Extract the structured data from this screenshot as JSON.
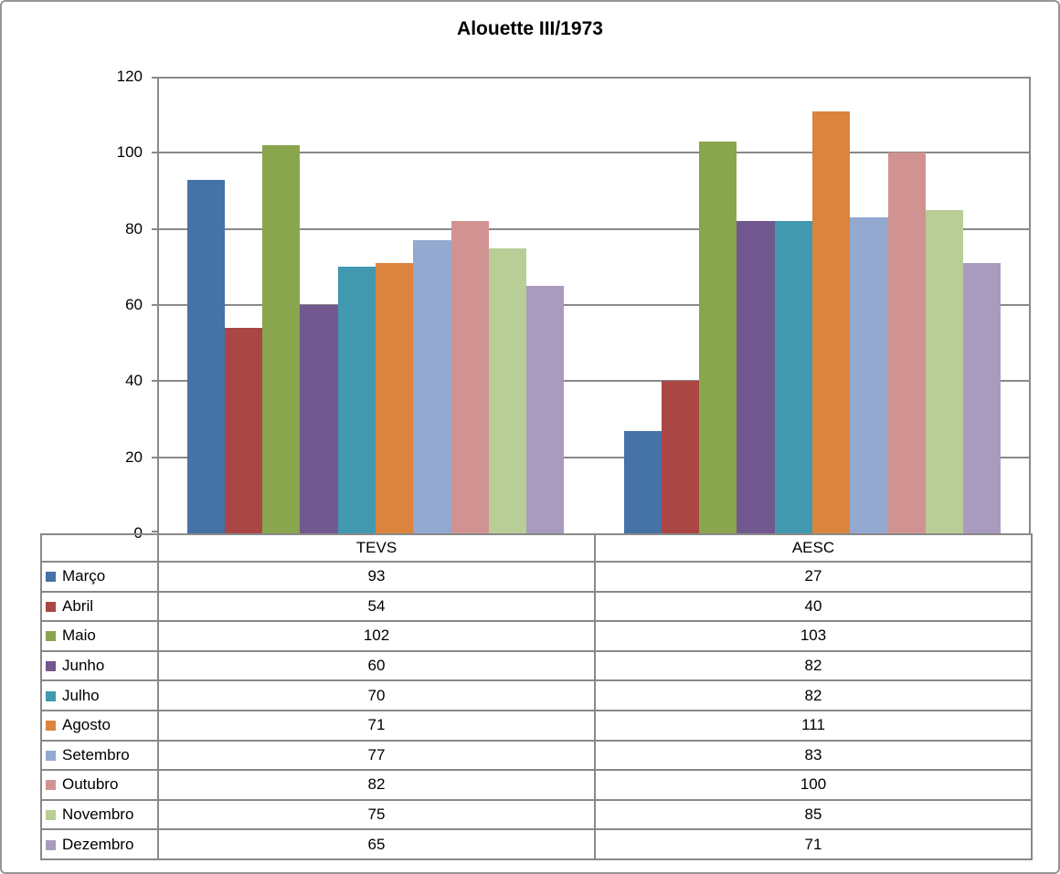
{
  "chart_data": {
    "type": "bar",
    "title": "Alouette III/1973",
    "categories": [
      "TEVS",
      "AESC"
    ],
    "series": [
      {
        "name": "Março",
        "color": "#4572A7",
        "values": [
          93,
          27
        ]
      },
      {
        "name": "Abril",
        "color": "#AA4643",
        "values": [
          54,
          40
        ]
      },
      {
        "name": "Maio",
        "color": "#89A54E",
        "values": [
          102,
          103
        ]
      },
      {
        "name": "Junho",
        "color": "#71588F",
        "values": [
          60,
          82
        ]
      },
      {
        "name": "Julho",
        "color": "#4198AF",
        "values": [
          70,
          82
        ]
      },
      {
        "name": "Agosto",
        "color": "#DB843D",
        "values": [
          71,
          111
        ]
      },
      {
        "name": "Setembro",
        "color": "#93A9CF",
        "values": [
          77,
          83
        ]
      },
      {
        "name": "Outubro",
        "color": "#D19392",
        "values": [
          82,
          100
        ]
      },
      {
        "name": "Novembro",
        "color": "#B9CD96",
        "values": [
          75,
          85
        ]
      },
      {
        "name": "Dezembro",
        "color": "#A99BBD",
        "values": [
          65,
          71
        ]
      }
    ],
    "ylim": [
      0,
      120
    ],
    "yticks": [
      0,
      20,
      40,
      60,
      80,
      100,
      120
    ],
    "grid": true,
    "legend_position": "table-left-column",
    "axis_color": "#898989",
    "background_color": "#FFFFFF"
  }
}
